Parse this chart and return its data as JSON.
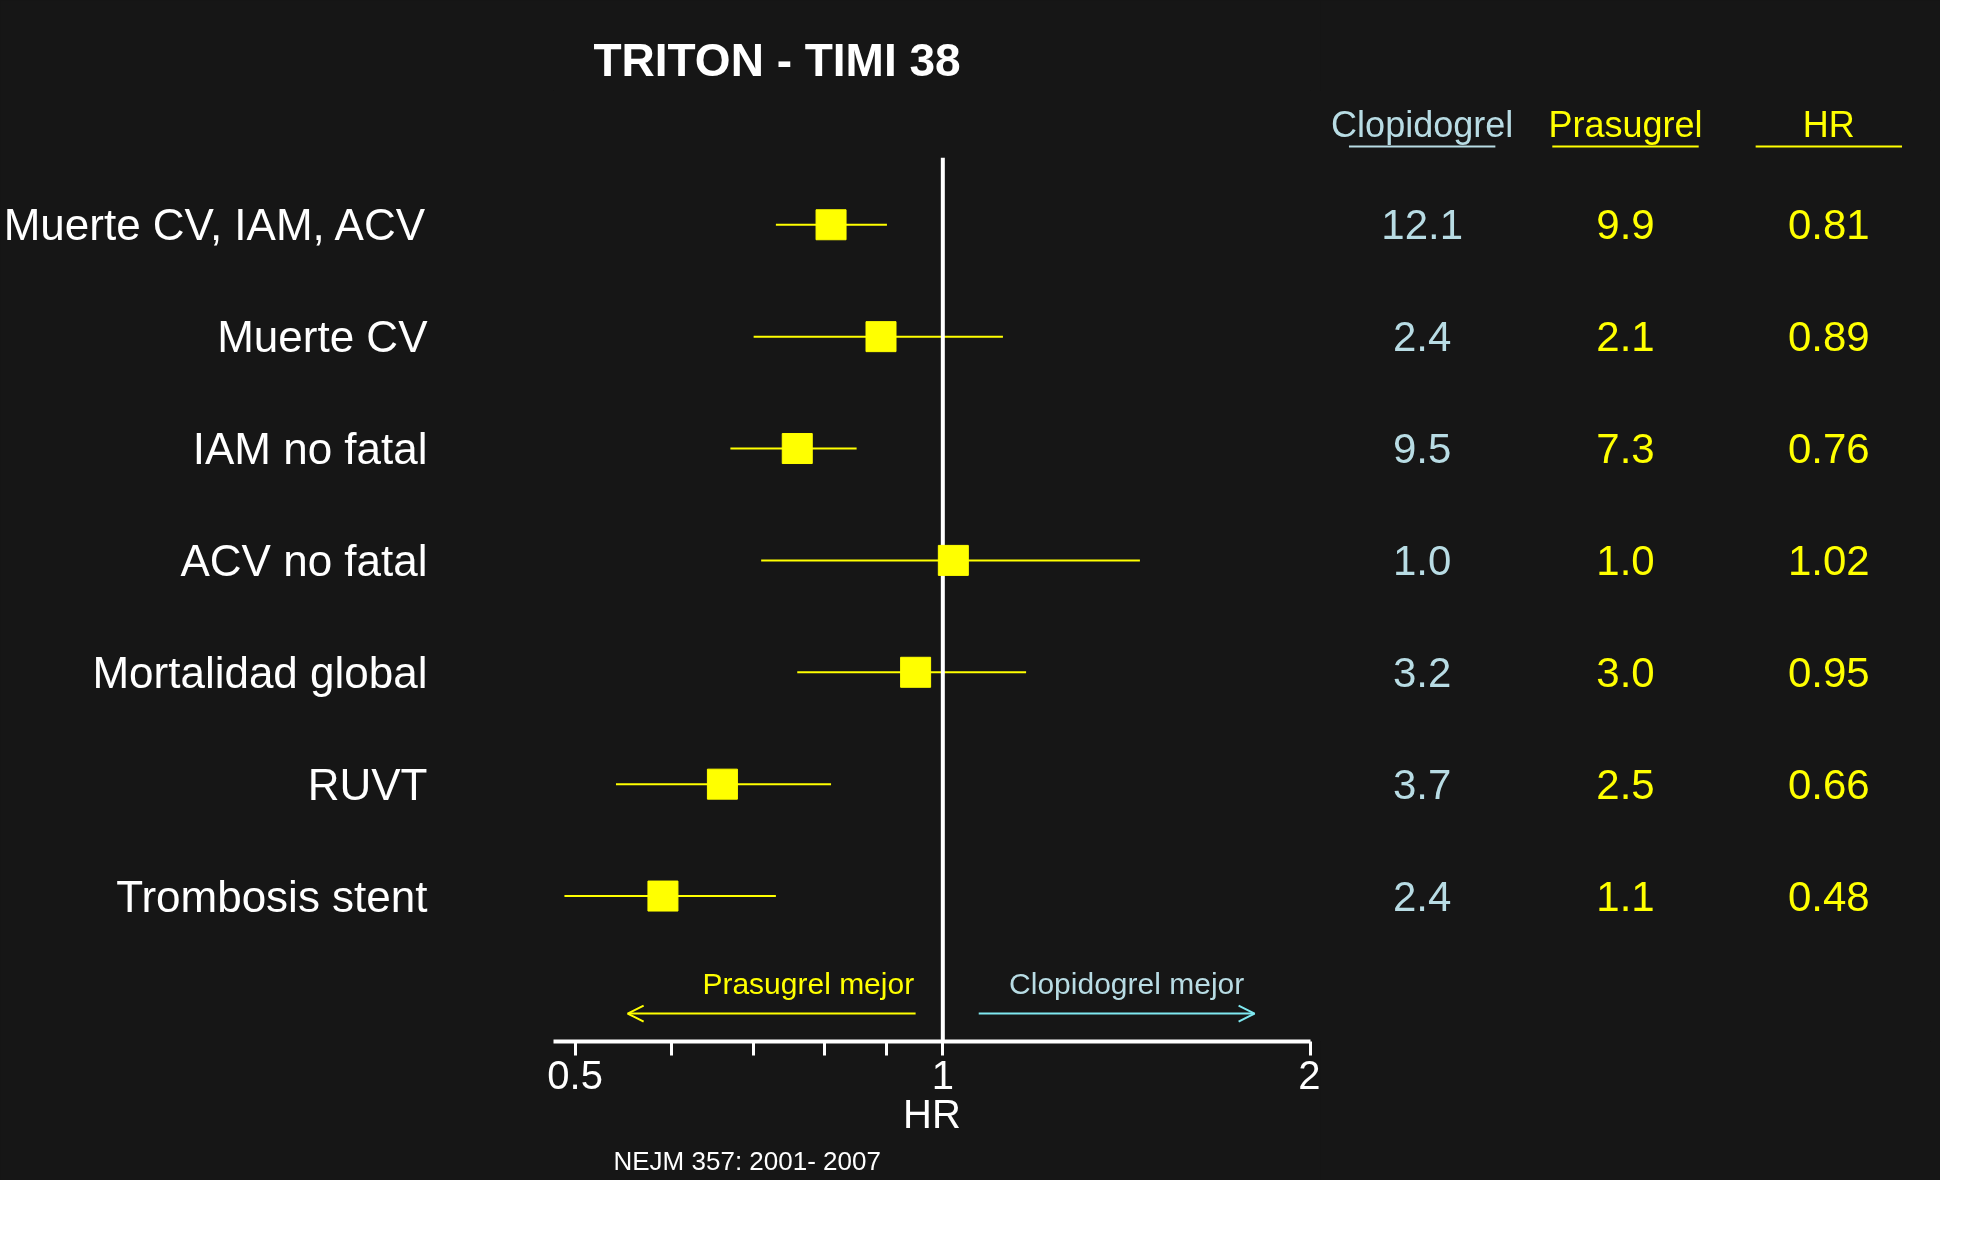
{
  "chart_data": {
    "type": "scatter",
    "title": "TRITON - TIMI 38",
    "xlabel": "HR",
    "categories": [
      "Muerte CV, IAM, ACV",
      "Muerte CV",
      "IAM no fatal",
      "ACV no fatal",
      "Mortalidad global",
      "RUVT",
      "Trombosis stent"
    ],
    "series": [
      {
        "color": "#ffff00",
        "values": [
          0.81,
          0.89,
          0.76,
          1.02,
          0.95,
          0.66,
          0.59
        ],
        "errors": [
          [
            0.73,
            0.9
          ],
          [
            0.7,
            1.12
          ],
          [
            0.67,
            0.85
          ],
          [
            0.71,
            1.45
          ],
          [
            0.76,
            1.17
          ],
          [
            0.54,
            0.81
          ],
          [
            0.49,
            0.73
          ]
        ]
      }
    ],
    "marker": "square",
    "log": "x",
    "orientation": "horizontal",
    "grid": false,
    "xlim": [
      0.48,
      2
    ],
    "xticks": [
      0.5,
      {
        "value": 0.6,
        "label": null
      },
      {
        "value": 0.7,
        "label": null
      },
      {
        "value": 0.8,
        "label": null
      },
      {
        "value": 0.9,
        "label": null
      },
      1,
      2
    ],
    "ref_lines": [
      {
        "axis": "x",
        "value": 1,
        "color": "#ffffff"
      }
    ],
    "annotations": [
      "NEJM 357: 2001- 2007",
      "Prasugrel mejor",
      "Clopidogrel mejor",
      "Clopidogrel",
      "Prasugrel",
      "HR",
      "12.1",
      "9.9",
      "0.81",
      "2.4",
      "2.1",
      "0.89",
      "9.5",
      "7.3",
      "0.76",
      "1.0",
      "1.0",
      "1.02",
      "3.2",
      "3.0",
      "0.95",
      "3.7",
      "2.5",
      "0.66",
      "2.4",
      "1.1",
      "0.48"
    ]
  }
}
